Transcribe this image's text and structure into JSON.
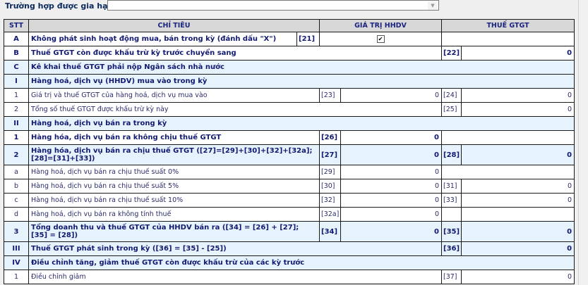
{
  "extension": {
    "label": "Trường hợp được gia hạn:",
    "value": ""
  },
  "headers": {
    "stt": "STT",
    "chi_tieu": "CHỈ TIÊU",
    "gia_tri": "GIÁ TRỊ HHDV",
    "thue": "THUẾ GTGT"
  },
  "rows": [
    {
      "kind": "A",
      "stt": "A",
      "label": "Không phát sinh hoạt động mua, bán trong kỳ (đánh dấu \"X\")",
      "c1": "[21]",
      "checked": true,
      "bold": true
    },
    {
      "kind": "r2",
      "stt": "B",
      "label": "Thuế GTGT còn được khấu trừ kỳ trước chuyển sang",
      "c2": "[22]",
      "v2": "0",
      "bold": true
    },
    {
      "kind": "sec",
      "stt": "C",
      "label": "Kê khai thuế GTGT phải nộp Ngân sách nhà nước",
      "bold": true,
      "blue": true
    },
    {
      "kind": "sec",
      "stt": "I",
      "label": "Hàng hoá, dịch vụ (HHDV) mua vào trong kỳ",
      "bold": true,
      "blue": true
    },
    {
      "kind": "both",
      "stt": "1",
      "label": "Giá trị và thuế GTGT của hàng hoá, dịch vụ mua vào",
      "c1": "[23]",
      "v1": "0",
      "c2": "[24]",
      "v2": "0"
    },
    {
      "kind": "r2",
      "stt": "2",
      "label": "Tổng số thuế GTGT  được khấu trừ kỳ này",
      "c2": "[25]",
      "v2": "0"
    },
    {
      "kind": "sec",
      "stt": "II",
      "label": "Hàng hoá, dịch vụ bán ra trong kỳ",
      "bold": true,
      "blue": true
    },
    {
      "kind": "r1",
      "stt": "1",
      "label": "Hàng hóa, dịch vụ bán ra không chịu thuế GTGT",
      "c1": "[26]",
      "v1": "0",
      "bold": true
    },
    {
      "kind": "both",
      "stt": "2",
      "label": "Hàng hóa, dịch vụ bán ra chịu thuế GTGT ([27]=[29]+[30]+[32]+[32a]; [28]=[31]+[33])",
      "c1": "[27]",
      "v1": "0",
      "c2": "[28]",
      "v2": "0",
      "bold": true,
      "blue": true,
      "tall": true
    },
    {
      "kind": "r1",
      "stt": "a",
      "label": "Hàng hoá, dịch vụ bán ra chịu thuế suất 0%",
      "c1": "[29]",
      "v1": "0"
    },
    {
      "kind": "both",
      "stt": "b",
      "label": "Hàng hoá, dịch vụ bán ra chịu thuế suất 5%",
      "c1": "[30]",
      "v1": "0",
      "c2": "[31]",
      "v2": "0"
    },
    {
      "kind": "both",
      "stt": "c",
      "label": "Hàng hoá, dịch vụ bán ra chịu thuế suất 10%",
      "c1": "[32]",
      "v1": "0",
      "c2": "[33]",
      "v2": "0"
    },
    {
      "kind": "both",
      "stt": "d",
      "label": "Hàng hoá, dịch vụ bán ra không tính thuế",
      "c1": "[32a]",
      "v1": "0",
      "c2": "",
      "v2": ""
    },
    {
      "kind": "both",
      "stt": "3",
      "label": "Tổng doanh thu và thuế GTGT của HHDV bán  ra ([34] = [26] + [27]; [35] = [28])",
      "c1": "[34]",
      "v1": "0",
      "c2": "[35]",
      "v2": "0",
      "bold": true,
      "blue": true,
      "tall": true
    },
    {
      "kind": "r2",
      "stt": "III",
      "label": "Thuế GTGT phát sinh trong kỳ ([36] = [35] - [25])",
      "c2": "[36]",
      "v2": "0",
      "bold": true,
      "blue": true
    },
    {
      "kind": "sec",
      "stt": "IV",
      "label": "Điều chỉnh tăng, giảm thuế GTGT còn được khấu trừ của các kỳ trước",
      "bold": true,
      "blue": true
    },
    {
      "kind": "r2",
      "stt": "1",
      "label": "Điều chỉnh giảm",
      "c2": "[37]",
      "v2": "0"
    }
  ]
}
